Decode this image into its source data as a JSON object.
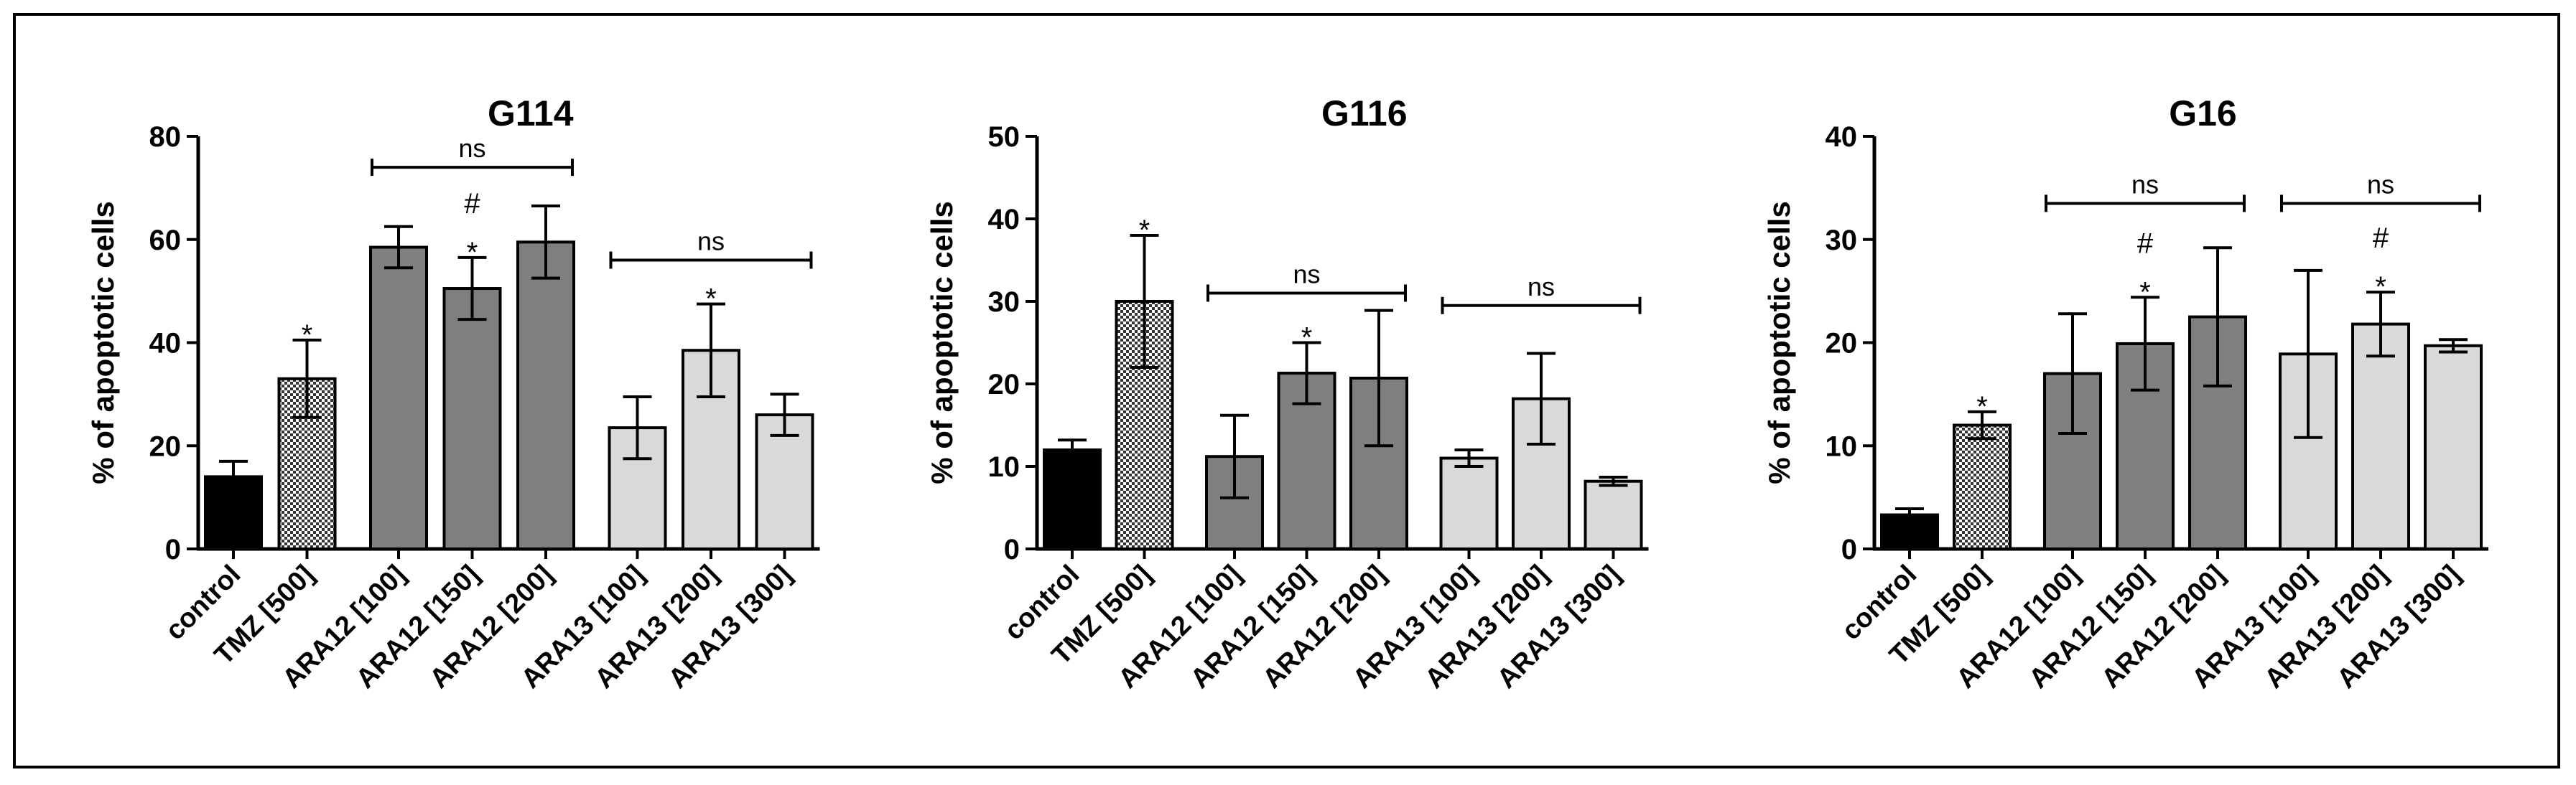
{
  "colors": {
    "control": "#000000",
    "tmz": "#c8c8c8",
    "ara12": "#7f7f7f",
    "ara13": "#d9d9d9",
    "axis": "#000000"
  },
  "chart_data": [
    {
      "type": "bar",
      "title": "G114",
      "ylabel": "% of apoptotic cells",
      "xlabel": "",
      "ylim": [
        0,
        80
      ],
      "yticks": [
        "0",
        "20",
        "40",
        "60",
        "80"
      ],
      "categories": [
        "control",
        "TMZ [500]",
        "ARA12 [100]",
        "ARA12 [150]",
        "ARA12 [200]",
        "ARA13 [100]",
        "ARA13 [200]",
        "ARA13 [300]"
      ],
      "values": [
        14,
        33,
        58.5,
        50.5,
        59.5,
        23.5,
        38.5,
        26
      ],
      "errors": [
        3,
        7.5,
        4,
        6,
        7,
        6,
        9,
        4
      ],
      "annotations": [
        "",
        "*",
        "",
        "#\n*",
        "",
        "",
        "*",
        ""
      ],
      "brackets": [
        {
          "from": 2,
          "to": 4,
          "y": 74,
          "label": "ns"
        },
        {
          "from": 5,
          "to": 7,
          "y": 56,
          "label": "ns"
        }
      ]
    },
    {
      "type": "bar",
      "title": "G116",
      "ylabel": "% of apoptotic cells",
      "xlabel": "",
      "ylim": [
        0,
        50
      ],
      "yticks": [
        "0",
        "10",
        "20",
        "30",
        "40",
        "50"
      ],
      "categories": [
        "control",
        "TMZ [500]",
        "ARA12 [100]",
        "ARA12 [150]",
        "ARA12 [200]",
        "ARA13 [100]",
        "ARA13 [200]",
        "ARA13 [300]"
      ],
      "values": [
        12,
        30,
        11.2,
        21.3,
        20.7,
        11,
        18.2,
        8.2
      ],
      "errors": [
        1.2,
        8,
        5,
        3.7,
        8.2,
        1,
        5.5,
        0.5
      ],
      "annotations": [
        "",
        "*",
        "",
        "*",
        "",
        "",
        "",
        ""
      ],
      "brackets": [
        {
          "from": 2,
          "to": 4,
          "y": 31,
          "label": "ns"
        },
        {
          "from": 5,
          "to": 7,
          "y": 29.5,
          "label": "ns"
        }
      ]
    },
    {
      "type": "bar",
      "title": "G16",
      "ylabel": "% of apoptotic cells",
      "xlabel": "",
      "ylim": [
        0,
        40
      ],
      "yticks": [
        "0",
        "10",
        "20",
        "30",
        "40"
      ],
      "categories": [
        "control",
        "TMZ [500]",
        "ARA12 [100]",
        "ARA12 [150]",
        "ARA12 [200]",
        "ARA13 [100]",
        "ARA13 [200]",
        "ARA13 [300]"
      ],
      "values": [
        3.3,
        12,
        17,
        19.9,
        22.5,
        18.9,
        21.8,
        19.7
      ],
      "errors": [
        0.6,
        1.3,
        5.8,
        4.5,
        6.7,
        8.1,
        3.1,
        0.6
      ],
      "annotations": [
        "",
        "*",
        "",
        "#\n*",
        "",
        "",
        "#\n*",
        ""
      ],
      "brackets": [
        {
          "from": 2,
          "to": 4,
          "y": 33.5,
          "label": "ns"
        },
        {
          "from": 5,
          "to": 7,
          "y": 33.5,
          "label": "ns"
        }
      ]
    }
  ]
}
